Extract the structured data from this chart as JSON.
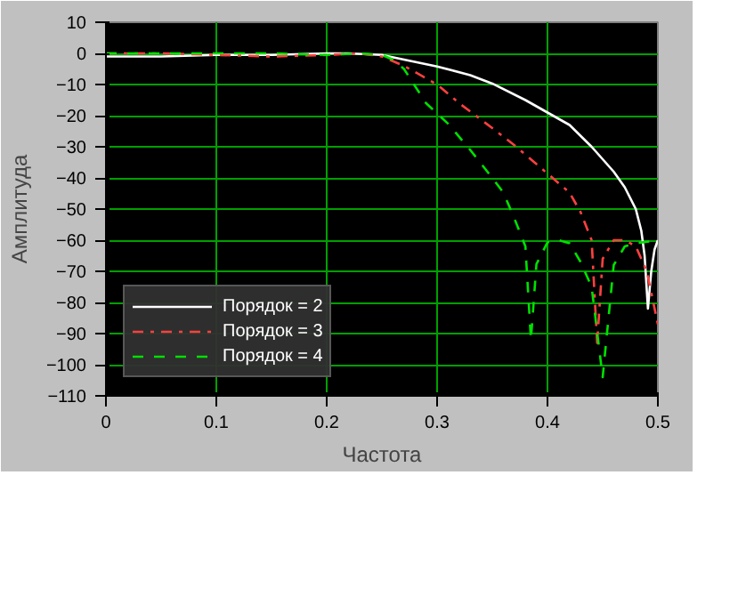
{
  "chart_data": {
    "type": "line",
    "xlabel": "Частота",
    "ylabel": "Амплитуда",
    "xlim": [
      0,
      0.5
    ],
    "ylim": [
      -110,
      10
    ],
    "xticks": [
      0,
      0.1,
      0.2,
      0.3,
      0.4,
      0.5
    ],
    "yticks": [
      -110,
      -100,
      -90,
      -80,
      -70,
      -60,
      -50,
      -40,
      -30,
      -20,
      -10,
      0,
      10
    ],
    "grid": true,
    "legend": "bottom left",
    "marker": "none",
    "series": [
      {
        "name": "Порядок = 2",
        "color": "#ffffff",
        "line_style": "solid",
        "x": [
          0,
          0.05,
          0.1,
          0.15,
          0.2,
          0.22,
          0.25,
          0.27,
          0.3,
          0.33,
          0.35,
          0.38,
          0.4,
          0.42,
          0.44,
          0.46,
          0.47,
          0.48,
          0.485,
          0.488,
          0.491,
          0.494,
          0.497,
          0.5
        ],
        "values": [
          -1,
          -1,
          -0.5,
          -0.5,
          0,
          0,
          -0.5,
          -2,
          -4.2,
          -7,
          -9.7,
          -15,
          -19,
          -23,
          -30,
          -38,
          -43,
          -50,
          -57,
          -65,
          -82,
          -70,
          -63,
          -60
        ]
      },
      {
        "name": "Порядок = 3",
        "color": "#ff4040",
        "line_style": "dashdot",
        "x": [
          0,
          0.05,
          0.1,
          0.15,
          0.2,
          0.23,
          0.25,
          0.27,
          0.3,
          0.32,
          0.35,
          0.37,
          0.4,
          0.42,
          0.43,
          0.44,
          0.445,
          0.45,
          0.46,
          0.47,
          0.48,
          0.49,
          0.5
        ],
        "values": [
          0,
          0,
          -0.5,
          -1,
          -0.5,
          0,
          -1,
          -4,
          -10,
          -16,
          -24,
          -29.5,
          -38.6,
          -44.7,
          -51,
          -60,
          -93,
          -66,
          -60,
          -60,
          -62,
          -70,
          -87
        ]
      },
      {
        "name": "Порядок = 4",
        "color": "#00e000",
        "line_style": "dashed",
        "x": [
          0,
          0.05,
          0.1,
          0.15,
          0.2,
          0.23,
          0.25,
          0.26,
          0.27,
          0.29,
          0.31,
          0.33,
          0.35,
          0.36,
          0.37,
          0.38,
          0.385,
          0.39,
          0.4,
          0.41,
          0.42,
          0.43,
          0.44,
          0.45,
          0.46,
          0.47,
          0.48,
          0.5
        ],
        "values": [
          0,
          0,
          0,
          0,
          -0.5,
          0,
          -0.5,
          -2,
          -5,
          -16,
          -22.6,
          -31,
          -40,
          -44.7,
          -53,
          -62,
          -92,
          -67.7,
          -60.7,
          -60,
          -61,
          -67,
          -75,
          -104,
          -68,
          -62,
          -61,
          -60
        ]
      }
    ]
  }
}
